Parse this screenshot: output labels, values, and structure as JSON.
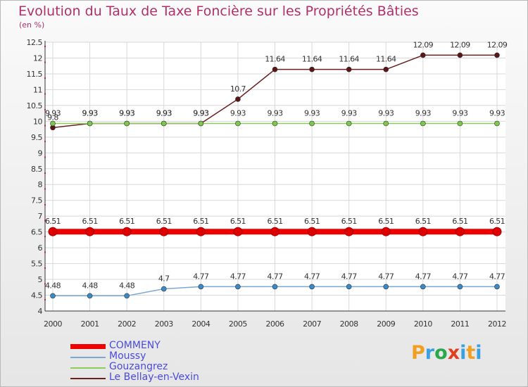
{
  "title": "Evolution du Taux de Taxe Foncière sur les Propriétés Bâties",
  "unit_label": "(en %)",
  "logo": "Proxiti",
  "logo_colors": [
    "#f0a020",
    "#3aa0e0",
    "#2aa84a",
    "#e04020",
    "#3aa0e0",
    "#f0a020",
    "#3aa0e0"
  ],
  "chart_data": {
    "type": "line",
    "title": "Evolution du Taux de Taxe Foncière sur les Propriétés Bâties",
    "ylabel": "(en %)",
    "xlabel": "",
    "x": [
      "2000",
      "2001",
      "2002",
      "2003",
      "2004",
      "2005",
      "2006",
      "2007",
      "2008",
      "2009",
      "2010",
      "2011",
      "2012"
    ],
    "ylim": [
      4,
      12.5
    ],
    "yticks": [
      "4",
      "4.5",
      "5",
      "5.5",
      "6",
      "6.5",
      "7",
      "7.5",
      "8",
      "8.5",
      "9",
      "9.5",
      "10",
      "10.5",
      "11",
      "11.5",
      "12",
      "12.5"
    ],
    "grid": true,
    "legend_position": "bottom-left",
    "series": [
      {
        "name": "Le Bellay-en-Vexin",
        "color": "#6b1f1f",
        "marker": "#5a1515",
        "values": [
          9.8,
          9.93,
          9.93,
          9.93,
          9.93,
          10.7,
          11.64,
          11.64,
          11.64,
          11.64,
          12.09,
          12.09,
          12.09
        ],
        "labels": [
          "9.8",
          "9.93",
          "9.93",
          "9.93",
          "9.93",
          "10.7",
          "11.64",
          "11.64",
          "11.64",
          "11.64",
          "12.09",
          "12.09",
          "12.09"
        ]
      },
      {
        "name": "Gouzangrez",
        "color": "#8ccc5a",
        "marker": "#7cc84a",
        "values": [
          9.93,
          9.93,
          9.93,
          9.93,
          9.93,
          9.93,
          9.93,
          9.93,
          9.93,
          9.93,
          9.93,
          9.93,
          9.93
        ],
        "labels": [
          "9.93",
          "9.93",
          "9.93",
          "9.93",
          "9.93",
          "9.93",
          "9.93",
          "9.93",
          "9.93",
          "9.93",
          "9.93",
          "9.93",
          "9.93"
        ]
      },
      {
        "name": "COMMENY",
        "color": "#ee0000",
        "marker": "#dd0000",
        "values": [
          6.51,
          6.51,
          6.51,
          6.51,
          6.51,
          6.51,
          6.51,
          6.51,
          6.51,
          6.51,
          6.51,
          6.51,
          6.51
        ],
        "labels": [
          "6.51",
          "6.51",
          "6.51",
          "6.51",
          "6.51",
          "6.51",
          "6.51",
          "6.51",
          "6.51",
          "6.51",
          "6.51",
          "6.51",
          "6.51"
        ]
      },
      {
        "name": "Moussy",
        "color": "#7aa8d0",
        "marker": "#3a8ac8",
        "values": [
          4.48,
          4.48,
          4.48,
          4.7,
          4.77,
          4.77,
          4.77,
          4.77,
          4.77,
          4.77,
          4.77,
          4.77,
          4.77
        ],
        "labels": [
          "4.48",
          "4.48",
          "4.48",
          "4.7",
          "4.77",
          "4.77",
          "4.77",
          "4.77",
          "4.77",
          "4.77",
          "4.77",
          "4.77",
          "4.77"
        ]
      }
    ],
    "legend": [
      "COMMENY",
      "Moussy",
      "Gouzangrez",
      "Le Bellay-en-Vexin"
    ]
  }
}
